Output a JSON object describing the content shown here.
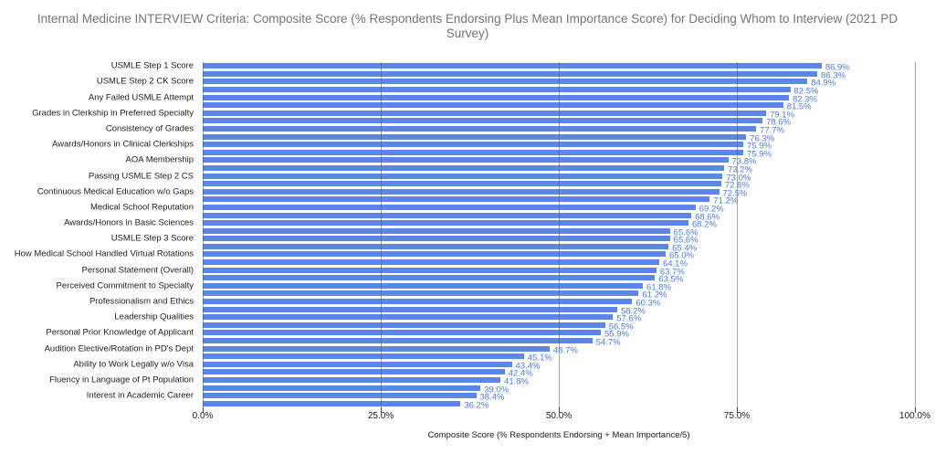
{
  "colors": {
    "title_text": "#757575",
    "axis_text": "#222222",
    "bar": "#5b87e8",
    "value_label": "#4d7de6",
    "gridline": "rgba(80,80,80,0.5)"
  },
  "chart_data": {
    "type": "bar",
    "orientation": "horizontal",
    "title": "Internal Medicine INTERVIEW Criteria: Composite Score (% Respondents Endorsing Plus Mean Importance Score) for Deciding Whom to Interview (2021 PD Survey)",
    "xlabel": "Composite Score (% Respondents Endorsing + Mean Importance/5)",
    "ylabel": "",
    "xlim": [
      0,
      100
    ],
    "grid": true,
    "legend": "none",
    "x_ticks": [
      {
        "value": 0,
        "label": "0.0%"
      },
      {
        "value": 25,
        "label": "25.0%"
      },
      {
        "value": 50,
        "label": "50.0%"
      },
      {
        "value": 75,
        "label": "75.0%"
      },
      {
        "value": 100,
        "label": "100.0%"
      }
    ],
    "bars": [
      {
        "label": "USMLE Step 1 Score",
        "value": 86.9,
        "display": "86.9%"
      },
      {
        "label": "",
        "value": 86.3,
        "display": "86.3%"
      },
      {
        "label": "USMLE Step 2 CK Score",
        "value": 84.9,
        "display": "84.9%"
      },
      {
        "label": "",
        "value": 82.5,
        "display": "82.5%"
      },
      {
        "label": "Any Failed USMLE Attempt",
        "value": 82.3,
        "display": "82.3%"
      },
      {
        "label": "",
        "value": 81.5,
        "display": "81.5%"
      },
      {
        "label": "Grades in Clerkship in Preferred Specialty",
        "value": 79.1,
        "display": "79.1%"
      },
      {
        "label": "",
        "value": 78.6,
        "display": "78.6%"
      },
      {
        "label": "Consistency of Grades",
        "value": 77.7,
        "display": "77.7%"
      },
      {
        "label": "",
        "value": 76.3,
        "display": "76.3%"
      },
      {
        "label": "Awards/Honors in Clinical Clerkships",
        "value": 75.9,
        "display": "75.9%"
      },
      {
        "label": "",
        "value": 75.9,
        "display": "75.9%"
      },
      {
        "label": "AOA Membership",
        "value": 73.8,
        "display": "73.8%"
      },
      {
        "label": "",
        "value": 73.2,
        "display": "73.2%"
      },
      {
        "label": "Passing USMLE Step 2 CS",
        "value": 73.0,
        "display": "73.0%"
      },
      {
        "label": "",
        "value": 72.8,
        "display": "72.8%"
      },
      {
        "label": "Continuous Medical Education w/o Gaps",
        "value": 72.5,
        "display": "72.5%"
      },
      {
        "label": "",
        "value": 71.2,
        "display": "71.2%"
      },
      {
        "label": "Medical School Reputation",
        "value": 69.2,
        "display": "69.2%"
      },
      {
        "label": "",
        "value": 68.6,
        "display": "68.6%"
      },
      {
        "label": "Awards/Honors in Basic Sciences",
        "value": 68.2,
        "display": "68.2%"
      },
      {
        "label": "",
        "value": 65.6,
        "display": "65.6%"
      },
      {
        "label": "USMLE Step 3 Score",
        "value": 65.6,
        "display": "65.6%"
      },
      {
        "label": "",
        "value": 65.4,
        "display": "65.4%"
      },
      {
        "label": "How Medical School Handled Virtual Rotations",
        "value": 65.0,
        "display": "65.0%"
      },
      {
        "label": "",
        "value": 64.1,
        "display": "64.1%"
      },
      {
        "label": "Personal Statement (Overall)",
        "value": 63.7,
        "display": "63.7%"
      },
      {
        "label": "",
        "value": 63.5,
        "display": "63.5%"
      },
      {
        "label": "Perceived Commitment to Specialty",
        "value": 61.8,
        "display": "61.8%"
      },
      {
        "label": "",
        "value": 61.2,
        "display": "61.2%"
      },
      {
        "label": "Professionalism and Ethics",
        "value": 60.3,
        "display": "60.3%"
      },
      {
        "label": "",
        "value": 58.2,
        "display": "58.2%"
      },
      {
        "label": "Leadership Qualities",
        "value": 57.6,
        "display": "57.6%"
      },
      {
        "label": "",
        "value": 56.5,
        "display": "56.5%"
      },
      {
        "label": "Personal Prior Knowledge of Applicant",
        "value": 55.9,
        "display": "55.9%"
      },
      {
        "label": "",
        "value": 54.7,
        "display": "54.7%"
      },
      {
        "label": "Audition Elective/Rotation in PD's Dept",
        "value": 48.7,
        "display": "48.7%"
      },
      {
        "label": "",
        "value": 45.1,
        "display": "45.1%"
      },
      {
        "label": "Ability to Work Legally w/o Visa",
        "value": 43.4,
        "display": "43.4%"
      },
      {
        "label": "",
        "value": 42.4,
        "display": "42.4%"
      },
      {
        "label": "Fluency in Language of Pt Population",
        "value": 41.8,
        "display": "41.8%"
      },
      {
        "label": "",
        "value": 39.0,
        "display": "39.0%"
      },
      {
        "label": "Interest in Academic Career",
        "value": 38.4,
        "display": "38.4%"
      },
      {
        "label": "",
        "value": 36.2,
        "display": "36.2%"
      }
    ]
  }
}
